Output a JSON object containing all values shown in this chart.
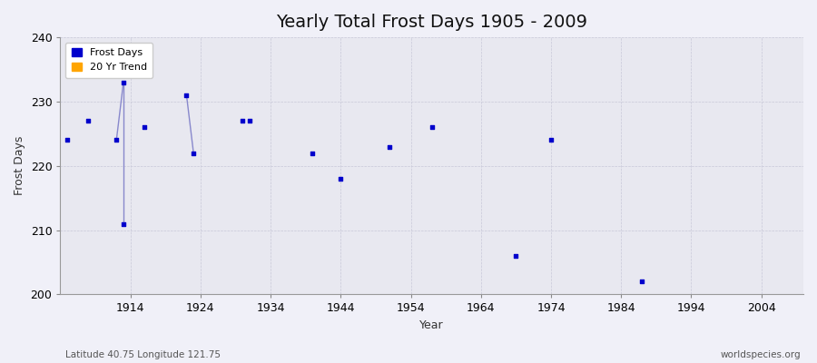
{
  "title": "Yearly Total Frost Days 1905 - 2009",
  "xlabel": "Year",
  "ylabel": "Frost Days",
  "subtitle_left": "Latitude 40.75 Longitude 121.75",
  "subtitle_right": "worldspecies.org",
  "xlim": [
    1904,
    2010
  ],
  "ylim": [
    200,
    240
  ],
  "yticks": [
    200,
    210,
    220,
    230,
    240
  ],
  "xticks": [
    1914,
    1924,
    1934,
    1944,
    1954,
    1964,
    1974,
    1984,
    1994,
    2004
  ],
  "fig_bg_color": "#f0f0f8",
  "plot_bg_color": "#e8e8f0",
  "grid_color": "#c8c8d8",
  "data_points": [
    [
      1905,
      224
    ],
    [
      1908,
      227
    ],
    [
      1912,
      224
    ],
    [
      1913,
      233
    ],
    [
      1913,
      211
    ],
    [
      1916,
      226
    ],
    [
      1922,
      231
    ],
    [
      1923,
      222
    ],
    [
      1930,
      227
    ],
    [
      1931,
      227
    ],
    [
      1940,
      222
    ],
    [
      1944,
      218
    ],
    [
      1951,
      223
    ],
    [
      1957,
      226
    ],
    [
      1969,
      206
    ],
    [
      1974,
      224
    ],
    [
      1987,
      202
    ]
  ],
  "line_segments": [
    [
      [
        1912,
        224
      ],
      [
        1913,
        233
      ]
    ],
    [
      [
        1913,
        233
      ],
      [
        1913,
        211
      ]
    ],
    [
      [
        1922,
        231
      ],
      [
        1923,
        222
      ]
    ]
  ],
  "dot_color": "#0000cc",
  "line_color": "#8888cc",
  "dot_size": 8,
  "legend_frost_color": "#0000cc",
  "legend_trend_color": "#ffa500",
  "title_fontsize": 14,
  "axis_label_fontsize": 9,
  "tick_fontsize": 9,
  "legend_fontsize": 8,
  "subtitle_fontsize": 7.5
}
